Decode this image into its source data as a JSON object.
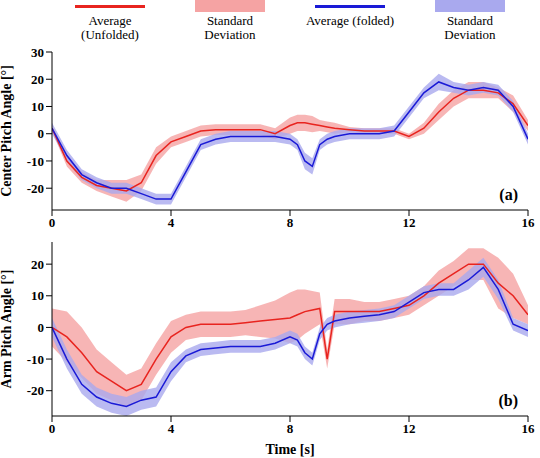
{
  "chart_data": [
    {
      "type": "line",
      "y_label": "Center Pitch Angle [°]",
      "panel_label": "(a)",
      "legend": "top",
      "grid": false,
      "x": [
        0,
        0.5,
        1,
        1.5,
        2,
        2.5,
        3,
        3.5,
        4,
        4.5,
        5,
        5.5,
        6,
        6.5,
        7,
        7.5,
        8,
        8.25,
        8.5,
        8.75,
        9,
        9.25,
        9.5,
        10,
        10.5,
        11,
        11.5,
        12,
        12.5,
        13,
        13.5,
        14,
        14.5,
        15,
        15.5,
        16
      ],
      "xlim": [
        0,
        16
      ],
      "xticks": [
        0,
        4,
        8,
        12,
        16
      ],
      "ylim": [
        -28,
        30
      ],
      "yticks": [
        -20,
        -10,
        0,
        10,
        20,
        30
      ],
      "series": [
        {
          "name": "Average (Unfolded)",
          "type": "line",
          "color": "#e8241f",
          "values": [
            2,
            -10,
            -16,
            -19,
            -20,
            -21,
            -18,
            -8,
            -3,
            -1,
            1,
            1.5,
            1.5,
            1.5,
            1.5,
            0,
            3,
            4,
            4,
            3.5,
            3,
            2.5,
            2,
            1.5,
            1,
            1,
            1,
            -1,
            2,
            8,
            13,
            16,
            16,
            15,
            11,
            3
          ]
        },
        {
          "name": "Standard Deviation",
          "type": "band",
          "color": "#f5a3a3",
          "lower": [
            1,
            -12,
            -18,
            -21,
            -23,
            -25,
            -21,
            -11,
            -5,
            -3,
            -1,
            -0.5,
            -0.5,
            -0.5,
            -0.5,
            -2,
            0,
            1,
            1,
            0.5,
            1,
            0.5,
            0,
            0.5,
            0,
            0,
            0,
            -2,
            0,
            5,
            10,
            13,
            13,
            13,
            8,
            1
          ],
          "upper": [
            3,
            -8,
            -14,
            -17,
            -17,
            -17,
            -15,
            -5,
            -1,
            1,
            3,
            3.5,
            3.5,
            3.5,
            3.5,
            2,
            6,
            7,
            7,
            6.5,
            5,
            4.5,
            4,
            2.5,
            2,
            2,
            2,
            0,
            4,
            11,
            16,
            19,
            19,
            17,
            14,
            5
          ]
        },
        {
          "name": "Average (folded)",
          "type": "line",
          "color": "#1a1ad6",
          "values": [
            2,
            -8,
            -15,
            -18,
            -20,
            -20,
            -22,
            -24,
            -24,
            -14,
            -4,
            -2,
            -1,
            -1,
            -1,
            -1,
            -2,
            -4,
            -10,
            -12,
            -4,
            -2,
            -1,
            0,
            0,
            0,
            1,
            8,
            15,
            19,
            17,
            16,
            17,
            16,
            10,
            -2
          ]
        },
        {
          "name": "Standard Deviation",
          "type": "band",
          "color": "#a9a9ee",
          "lower": [
            0,
            -10,
            -17,
            -20,
            -22,
            -22,
            -24,
            -26,
            -26,
            -16,
            -6,
            -4,
            -3,
            -3,
            -3,
            -3,
            -4,
            -6,
            -13,
            -15,
            -6,
            -4,
            -3,
            -2,
            -2,
            -2,
            -1,
            6,
            13,
            16,
            15,
            14,
            15,
            14,
            8,
            -4
          ],
          "upper": [
            4,
            -6,
            -13,
            -16,
            -18,
            -18,
            -20,
            -22,
            -22,
            -12,
            -2,
            0,
            1,
            1,
            1,
            1,
            0,
            -2,
            -7,
            -9,
            -2,
            0,
            1,
            2,
            2,
            2,
            3,
            10,
            17,
            22,
            19,
            18,
            19,
            18,
            12,
            0
          ]
        }
      ]
    },
    {
      "type": "line",
      "y_label": "Arm Pitch Angle [°]",
      "x_label": "Time [s]",
      "panel_label": "(b)",
      "grid": false,
      "x": [
        0,
        0.5,
        1,
        1.5,
        2,
        2.5,
        3,
        3.5,
        4,
        4.5,
        5,
        5.5,
        6,
        6.5,
        7,
        7.5,
        8,
        8.25,
        8.5,
        8.75,
        9,
        9.25,
        9.5,
        10,
        10.5,
        11,
        11.5,
        12,
        12.5,
        13,
        13.5,
        14,
        14.5,
        15,
        15.5,
        16
      ],
      "xlim": [
        0,
        16
      ],
      "xticks": [
        0,
        4,
        8,
        12,
        16
      ],
      "ylim": [
        -28,
        27
      ],
      "yticks": [
        -20,
        -10,
        0,
        10,
        20
      ],
      "series": [
        {
          "type": "line",
          "color": "#e8241f",
          "values": [
            0,
            -3,
            -8,
            -14,
            -17,
            -20,
            -18,
            -10,
            -3,
            0,
            1,
            1,
            1,
            1.5,
            2,
            2.5,
            3,
            4,
            5,
            5.5,
            6,
            -10,
            5,
            5,
            5,
            5,
            6,
            7,
            10,
            14,
            17,
            20,
            20,
            14,
            10,
            4
          ]
        },
        {
          "type": "band",
          "color": "#f5a3a3",
          "lower": [
            -6,
            -11,
            -16,
            -21,
            -23,
            -25,
            -23,
            -15,
            -8,
            -4,
            -3,
            -3,
            -3,
            -2.5,
            -3,
            -3.5,
            -5,
            -4,
            -2,
            -0.5,
            1,
            -13,
            1,
            1,
            2,
            2,
            3,
            4,
            7,
            10,
            13,
            15,
            15,
            6,
            3,
            1
          ],
          "upper": [
            6,
            5,
            0,
            -7,
            -11,
            -15,
            -13,
            -5,
            2,
            4,
            5,
            5,
            5,
            5.5,
            7,
            8.5,
            11,
            12,
            12,
            11.5,
            11,
            -7,
            9,
            9,
            8,
            8,
            9,
            10,
            13,
            18,
            21,
            25,
            25,
            22,
            17,
            7
          ]
        },
        {
          "type": "line",
          "color": "#1a1ad6",
          "values": [
            0,
            -10,
            -18,
            -22,
            -24,
            -25,
            -23,
            -22,
            -14,
            -9,
            -7,
            -6.5,
            -6,
            -6,
            -6,
            -5,
            -3,
            -4,
            -8,
            -10,
            -2,
            1,
            2,
            3,
            3.5,
            4,
            5,
            8,
            11,
            12,
            12,
            15,
            19,
            12,
            1,
            -1
          ]
        },
        {
          "type": "band",
          "color": "#a9a9ee",
          "lower": [
            -3,
            -13,
            -21,
            -25,
            -27,
            -28,
            -26,
            -25,
            -17,
            -11,
            -9,
            -8.5,
            -8,
            -8,
            -8,
            -7,
            -5,
            -6,
            -10,
            -12,
            -4,
            -1,
            0,
            1,
            1.5,
            2,
            3,
            6,
            9,
            10,
            10,
            12,
            16,
            9,
            -1,
            -3
          ],
          "upper": [
            3,
            -7,
            -15,
            -19,
            -21,
            -22,
            -20,
            -19,
            -11,
            -7,
            -5,
            -4.5,
            -4,
            -4,
            -4,
            -3,
            -1,
            -2,
            -6,
            -8,
            0,
            3,
            4,
            5,
            5.5,
            6,
            7,
            10,
            13,
            14,
            14,
            18,
            22,
            15,
            3,
            1
          ]
        }
      ]
    }
  ]
}
